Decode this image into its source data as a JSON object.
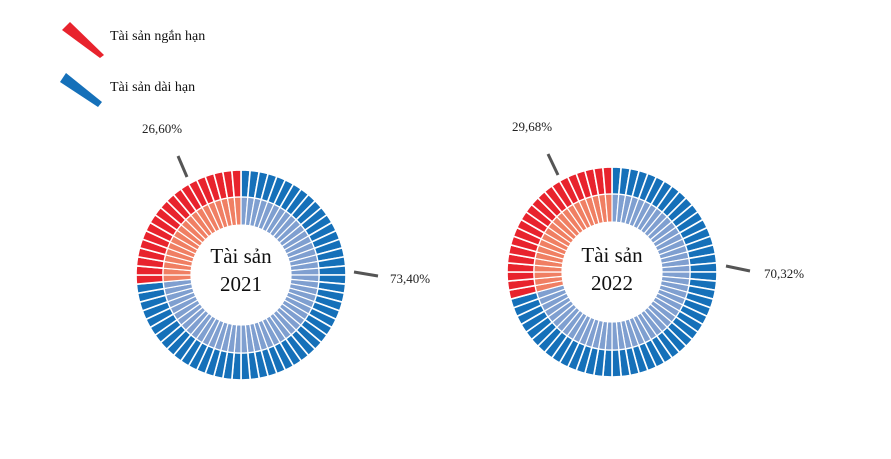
{
  "colors": {
    "short_term_outer": "#e8232d",
    "short_term_inner": "#f07f63",
    "long_term_outer": "#1570b9",
    "long_term_inner": "#7f9fd0",
    "leader": "#555555"
  },
  "legend": [
    {
      "label": "Tài sản ngắn hạn",
      "icon": "red-wedge-icon",
      "color": "#e8232d"
    },
    {
      "label": "Tài sản dài hạn",
      "icon": "blue-wedge-icon",
      "color": "#1570b9"
    }
  ],
  "chart_data": [
    {
      "type": "pie",
      "variant": "donut",
      "center_label_line1": "Tài sản",
      "center_label_line2": "2021",
      "series": [
        {
          "name": "Tài sản ngắn hạn",
          "value": 26.6,
          "label": "26,60%"
        },
        {
          "name": "Tài sản dài hạn",
          "value": 73.4,
          "label": "73,40%"
        }
      ]
    },
    {
      "type": "pie",
      "variant": "donut",
      "center_label_line1": "Tài sản",
      "center_label_line2": "2022",
      "series": [
        {
          "name": "Tài sản ngắn hạn",
          "value": 29.68,
          "label": "29,68%"
        },
        {
          "name": "Tài sản dài hạn",
          "value": 70.32,
          "label": "70,32%"
        }
      ]
    }
  ]
}
